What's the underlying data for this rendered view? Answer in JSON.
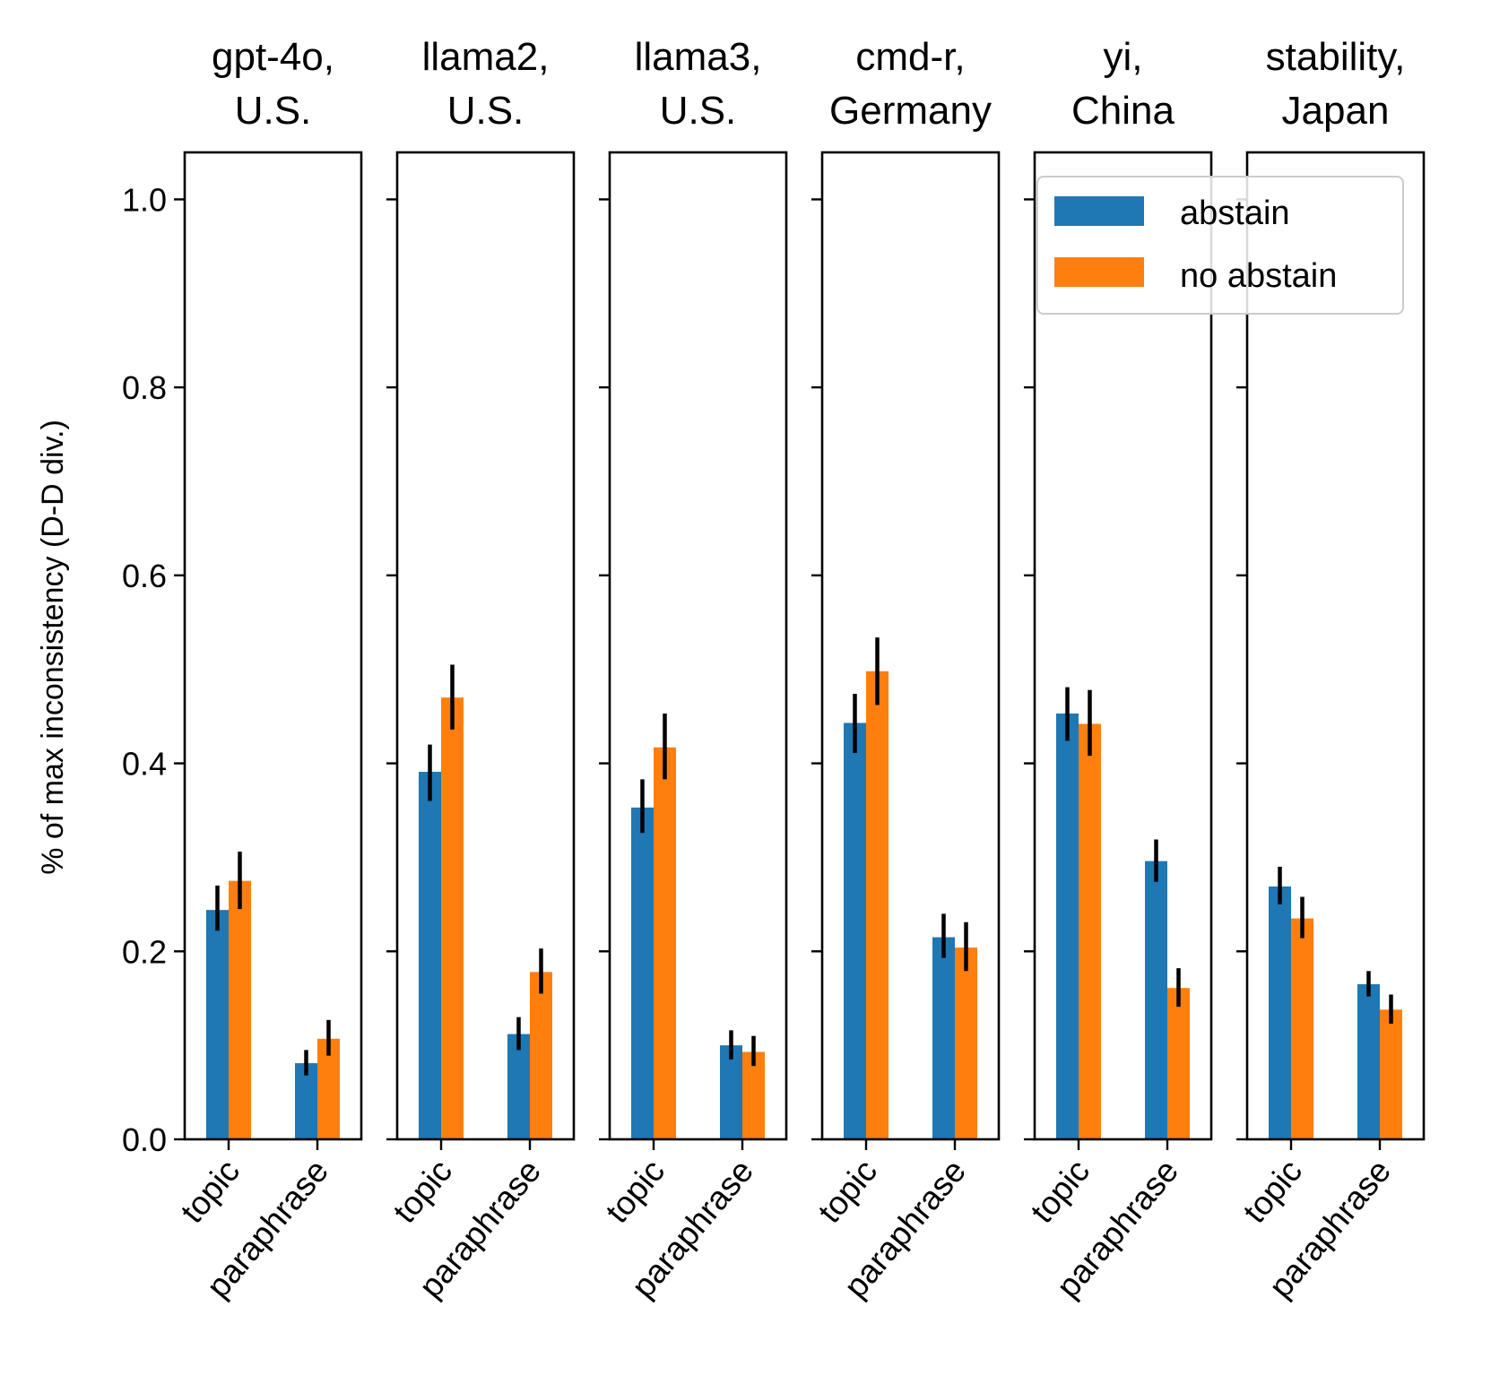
{
  "chart_data": {
    "type": "bar",
    "ylabel": "% of max inconsistency (D-D div.)",
    "ylim": [
      0,
      1.05
    ],
    "yticks": [
      "0.0",
      "0.2",
      "0.4",
      "0.6",
      "0.8",
      "1.0"
    ],
    "categories": [
      "topic",
      "paraphrase"
    ],
    "legend": {
      "location": "upper-right",
      "entries": [
        {
          "name": "abstain",
          "color": "#1f77b4"
        },
        {
          "name": "no abstain",
          "color": "#ff7f0e"
        }
      ]
    },
    "panels": [
      {
        "title_line1": "gpt-4o,",
        "title_line2": "U.S.",
        "series": [
          {
            "name": "abstain",
            "values": [
              0.244,
              0.081
            ],
            "err_low": [
              0.222,
              0.068
            ],
            "err_high": [
              0.27,
              0.095
            ]
          },
          {
            "name": "no abstain",
            "values": [
              0.275,
              0.107
            ],
            "err_low": [
              0.245,
              0.089
            ],
            "err_high": [
              0.306,
              0.127
            ]
          }
        ]
      },
      {
        "title_line1": "llama2,",
        "title_line2": "U.S.",
        "series": [
          {
            "name": "abstain",
            "values": [
              0.391,
              0.112
            ],
            "err_low": [
              0.36,
              0.095
            ],
            "err_high": [
              0.42,
              0.13
            ]
          },
          {
            "name": "no abstain",
            "values": [
              0.47,
              0.178
            ],
            "err_low": [
              0.436,
              0.155
            ],
            "err_high": [
              0.505,
              0.203
            ]
          }
        ]
      },
      {
        "title_line1": "llama3,",
        "title_line2": "U.S.",
        "series": [
          {
            "name": "abstain",
            "values": [
              0.353,
              0.1
            ],
            "err_low": [
              0.326,
              0.085
            ],
            "err_high": [
              0.383,
              0.116
            ]
          },
          {
            "name": "no abstain",
            "values": [
              0.417,
              0.093
            ],
            "err_low": [
              0.383,
              0.078
            ],
            "err_high": [
              0.453,
              0.11
            ]
          }
        ]
      },
      {
        "title_line1": "cmd-r,",
        "title_line2": "Germany",
        "series": [
          {
            "name": "abstain",
            "values": [
              0.443,
              0.215
            ],
            "err_low": [
              0.411,
              0.193
            ],
            "err_high": [
              0.474,
              0.24
            ]
          },
          {
            "name": "no abstain",
            "values": [
              0.498,
              0.204
            ],
            "err_low": [
              0.462,
              0.179
            ],
            "err_high": [
              0.534,
              0.231
            ]
          }
        ]
      },
      {
        "title_line1": "yi,",
        "title_line2": "China",
        "series": [
          {
            "name": "abstain",
            "values": [
              0.453,
              0.296
            ],
            "err_low": [
              0.424,
              0.274
            ],
            "err_high": [
              0.481,
              0.319
            ]
          },
          {
            "name": "no abstain",
            "values": [
              0.442,
              0.161
            ],
            "err_low": [
              0.408,
              0.141
            ],
            "err_high": [
              0.478,
              0.182
            ]
          }
        ]
      },
      {
        "title_line1": "stability,",
        "title_line2": "Japan",
        "series": [
          {
            "name": "abstain",
            "values": [
              0.269,
              0.165
            ],
            "err_low": [
              0.25,
              0.152
            ],
            "err_high": [
              0.29,
              0.179
            ]
          },
          {
            "name": "no abstain",
            "values": [
              0.235,
              0.138
            ],
            "err_low": [
              0.214,
              0.123
            ],
            "err_high": [
              0.258,
              0.154
            ]
          }
        ]
      }
    ]
  }
}
